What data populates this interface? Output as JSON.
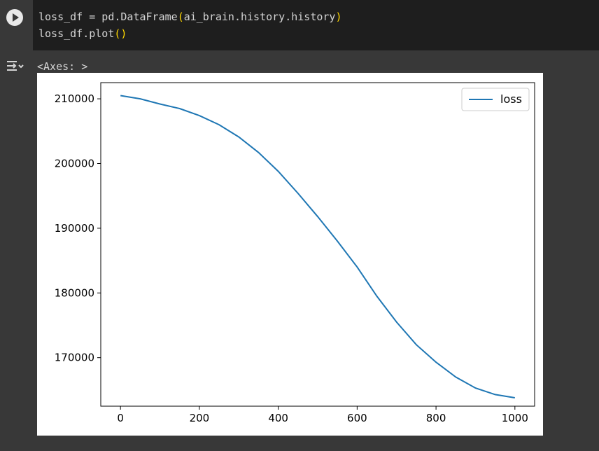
{
  "code": {
    "line1_prefix": "loss_df = pd.DataFrame",
    "line1_open": "(",
    "line1_arg": "ai_brain.history.history",
    "line1_close": ")",
    "line2_prefix": "loss_df.plot",
    "line2_parens": "()"
  },
  "output": {
    "text": "<Axes: >"
  },
  "icons": {
    "run": "play-circle-icon",
    "output_toggle": "output-collapse-icon"
  },
  "chart_data": {
    "type": "line",
    "title": "",
    "xlabel": "",
    "ylabel": "",
    "xlim": [
      -50,
      1050
    ],
    "ylim": [
      162500,
      212500
    ],
    "xticks": [
      0,
      200,
      400,
      600,
      800,
      1000
    ],
    "yticks": [
      170000,
      180000,
      190000,
      200000,
      210000
    ],
    "xtick_labels": [
      "0",
      "200",
      "400",
      "600",
      "800",
      "1000"
    ],
    "ytick_labels": [
      "170000",
      "180000",
      "190000",
      "200000",
      "210000"
    ],
    "grid": false,
    "legend": "top-right",
    "series": [
      {
        "name": "loss",
        "color": "#1f77b4",
        "x": [
          0,
          50,
          100,
          150,
          200,
          250,
          300,
          350,
          400,
          450,
          500,
          550,
          600,
          650,
          700,
          750,
          800,
          850,
          900,
          950,
          1000
        ],
        "y": [
          210500,
          210000,
          209200,
          208500,
          207400,
          206000,
          204100,
          201700,
          198800,
          195400,
          191800,
          188000,
          184000,
          179500,
          175500,
          172000,
          169300,
          167000,
          165300,
          164300,
          163800
        ]
      }
    ]
  }
}
